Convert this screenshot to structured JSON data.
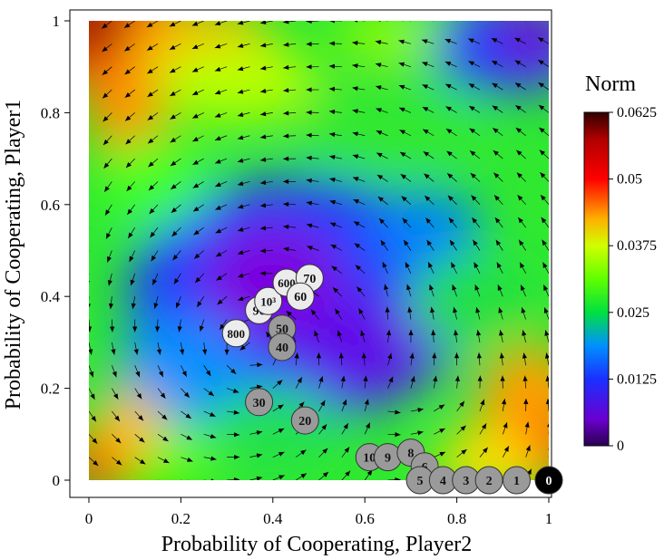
{
  "chart_data": {
    "type": "heatmap",
    "title": "",
    "xlabel": "Probability of Cooperating, Player2",
    "ylabel": "Probability of Cooperating, Player1",
    "xlim": [
      0,
      1
    ],
    "ylim": [
      0,
      1
    ],
    "x_ticks": [
      "0",
      "0.2",
      "0.4",
      "0.6",
      "0.8",
      "1"
    ],
    "y_ticks": [
      "0",
      "0.2",
      "0.4",
      "0.6",
      "0.8",
      "1"
    ],
    "grid": false,
    "colorbar": {
      "title": "Norm",
      "range": [
        0,
        0.0625
      ],
      "ticks": [
        "0",
        "0.0125",
        "0.025",
        "0.0375",
        "0.05",
        "0.0625"
      ]
    },
    "overlay": "vector field of arrows (direction of dynamics)",
    "trajectory_markers": [
      {
        "label": "0",
        "x": 1.0,
        "y": 0.0
      },
      {
        "label": "1",
        "x": 0.93,
        "y": 0.0
      },
      {
        "label": "2",
        "x": 0.87,
        "y": 0.0
      },
      {
        "label": "3",
        "x": 0.82,
        "y": 0.0
      },
      {
        "label": "4",
        "x": 0.77,
        "y": 0.0
      },
      {
        "label": "5",
        "x": 0.72,
        "y": 0.0
      },
      {
        "label": "6",
        "x": 0.73,
        "y": 0.03
      },
      {
        "label": "8",
        "x": 0.7,
        "y": 0.06
      },
      {
        "label": "9",
        "x": 0.65,
        "y": 0.05
      },
      {
        "label": "10",
        "x": 0.61,
        "y": 0.05
      },
      {
        "label": "20",
        "x": 0.47,
        "y": 0.13
      },
      {
        "label": "30",
        "x": 0.37,
        "y": 0.17
      },
      {
        "label": "40",
        "x": 0.42,
        "y": 0.29
      },
      {
        "label": "50",
        "x": 0.42,
        "y": 0.33
      },
      {
        "label": "60",
        "x": 0.46,
        "y": 0.4
      },
      {
        "label": "70",
        "x": 0.48,
        "y": 0.44
      },
      {
        "label": "600",
        "x": 0.43,
        "y": 0.43
      },
      {
        "label": "10³",
        "x": 0.39,
        "y": 0.39
      },
      {
        "label": "90",
        "x": 0.37,
        "y": 0.37
      },
      {
        "label": "800",
        "x": 0.32,
        "y": 0.32
      }
    ]
  }
}
